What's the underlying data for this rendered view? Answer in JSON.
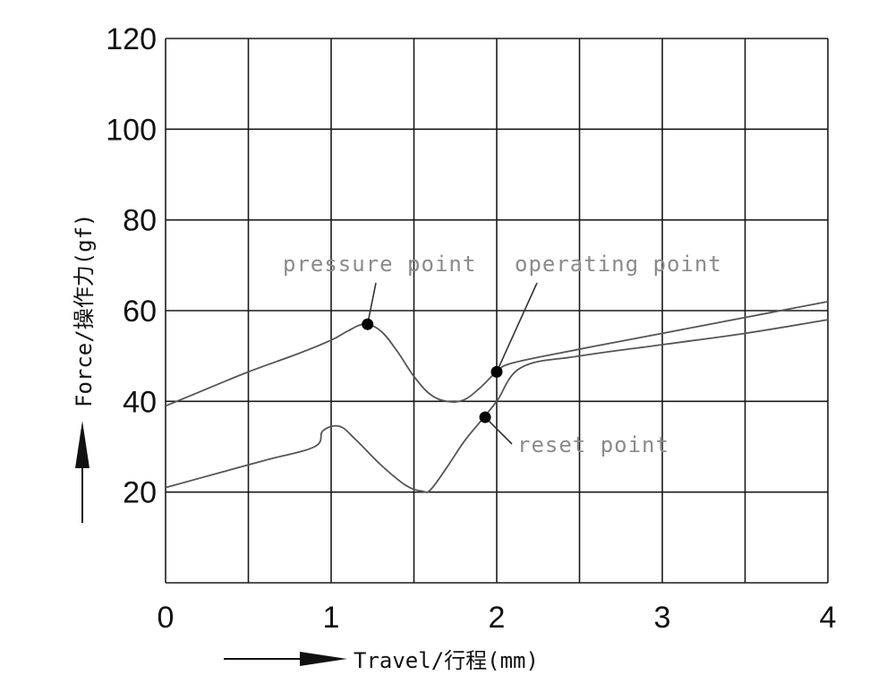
{
  "chart_data": {
    "type": "line",
    "xlabel": "Travel/行程(mm)",
    "ylabel": "Force/操作力(gf)",
    "xlim": [
      0,
      4
    ],
    "ylim": [
      0,
      120
    ],
    "x_ticks": [
      0,
      1,
      2,
      3,
      4
    ],
    "y_ticks": [
      20,
      40,
      60,
      80,
      100,
      120
    ],
    "grid": true,
    "series": [
      {
        "x": [
          0,
          0.2,
          0.5,
          0.8,
          1.0,
          1.1,
          1.2,
          1.3,
          1.4,
          1.5,
          1.6,
          1.7,
          1.8,
          1.9,
          2.0,
          2.1,
          2.5,
          3.0,
          3.5,
          4.0
        ],
        "values": [
          39,
          42,
          46.5,
          50.5,
          53.5,
          55.5,
          57,
          55.5,
          51,
          45.5,
          41.5,
          40,
          40.3,
          43,
          46.5,
          48.5,
          51.5,
          55,
          58.5,
          62
        ]
      },
      {
        "x": [
          0,
          0.3,
          0.6,
          0.9,
          0.95,
          1.05,
          1.15,
          1.3,
          1.45,
          1.55,
          1.6,
          1.7,
          1.8,
          1.9,
          2.0,
          2.15,
          2.5,
          3.0,
          3.5,
          4.0
        ],
        "values": [
          21,
          24,
          27,
          30,
          33.5,
          34.5,
          31.5,
          26,
          21.5,
          20.2,
          20.5,
          25.5,
          31,
          35.5,
          40,
          47.5,
          50,
          52.5,
          55,
          58
        ]
      }
    ],
    "points": [
      {
        "label": "pressure point",
        "x": 1.22,
        "y": 57
      },
      {
        "label": "operating point",
        "x": 2.0,
        "y": 46.5
      },
      {
        "label": "reset point",
        "x": 1.93,
        "y": 36.5
      }
    ]
  }
}
